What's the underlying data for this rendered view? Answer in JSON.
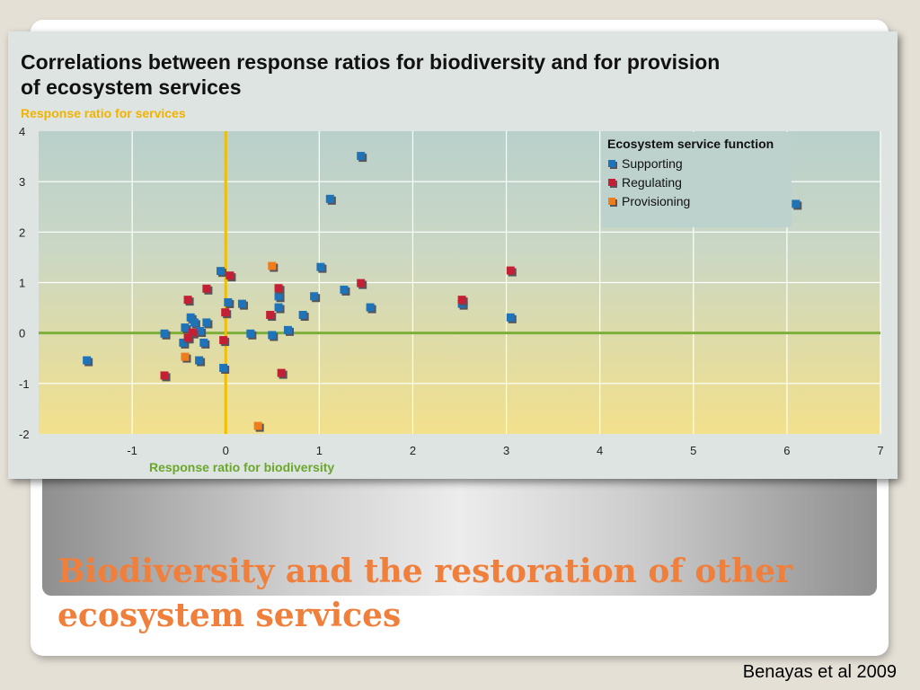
{
  "slide": {
    "title": "Biodiversity and the restoration of other ecosystem services",
    "citation": "Benayas et al 2009"
  },
  "colors": {
    "supporting": "#1f73b8",
    "regulating": "#c41f35",
    "provisioning": "#ee7d1e",
    "zero_x_line": "#f2be00",
    "zero_y_line": "#7cae3a",
    "y_title": "#f2b300",
    "x_title": "#6aa72a"
  },
  "chart_data": {
    "type": "scatter",
    "title": "Correlations between response ratios for biodiversity and for provision of ecosystem services",
    "title_lines": [
      "Correlations between response ratios for biodiversity and for provision",
      "of ecosystem services"
    ],
    "xlabel": "Response ratio for biodiversity",
    "ylabel": "Response ratio for services",
    "xlim": [
      -2,
      7
    ],
    "ylim": [
      -2,
      4
    ],
    "x_ticks": [
      -1,
      0,
      1,
      2,
      3,
      4,
      5,
      6,
      7
    ],
    "y_ticks": [
      -2,
      -1,
      0,
      1,
      2,
      3,
      4
    ],
    "grid": true,
    "legend": {
      "title": "Ecosystem service function",
      "placement": "top-right"
    },
    "series": [
      {
        "name": "Supporting",
        "color": "#1f73b8",
        "points": [
          [
            1.45,
            3.5
          ],
          [
            1.12,
            2.65
          ],
          [
            6.1,
            2.55
          ],
          [
            -0.05,
            1.22
          ],
          [
            1.02,
            1.3
          ],
          [
            0.03,
            0.6
          ],
          [
            0.18,
            0.57
          ],
          [
            0.57,
            0.72
          ],
          [
            0.57,
            0.5
          ],
          [
            0.95,
            0.72
          ],
          [
            1.27,
            0.85
          ],
          [
            1.55,
            0.5
          ],
          [
            2.53,
            0.57
          ],
          [
            3.05,
            0.3
          ],
          [
            0.83,
            0.35
          ],
          [
            0.67,
            0.05
          ],
          [
            0.27,
            -0.02
          ],
          [
            0.5,
            -0.05
          ],
          [
            -0.2,
            0.2
          ],
          [
            -0.43,
            0.1
          ],
          [
            -0.37,
            0.3
          ],
          [
            -0.33,
            0.2
          ],
          [
            -0.27,
            0.03
          ],
          [
            -0.23,
            -0.2
          ],
          [
            -0.45,
            -0.2
          ],
          [
            -0.28,
            -0.55
          ],
          [
            -0.02,
            -0.7
          ],
          [
            -0.65,
            -0.02
          ],
          [
            -1.48,
            -0.55
          ]
        ]
      },
      {
        "name": "Regulating",
        "color": "#c41f35",
        "points": [
          [
            3.05,
            1.23
          ],
          [
            0.05,
            1.13
          ],
          [
            1.45,
            0.98
          ],
          [
            2.53,
            0.65
          ],
          [
            -0.2,
            0.87
          ],
          [
            0.57,
            0.88
          ],
          [
            -0.4,
            0.65
          ],
          [
            0.0,
            0.4
          ],
          [
            0.48,
            0.35
          ],
          [
            -0.35,
            0.0
          ],
          [
            -0.4,
            -0.1
          ],
          [
            -0.02,
            -0.15
          ],
          [
            -0.65,
            -0.85
          ],
          [
            0.6,
            -0.8
          ]
        ]
      },
      {
        "name": "Provisioning",
        "color": "#ee7d1e",
        "points": [
          [
            0.5,
            1.32
          ],
          [
            -0.43,
            -0.48
          ],
          [
            0.35,
            -1.85
          ]
        ]
      }
    ]
  }
}
